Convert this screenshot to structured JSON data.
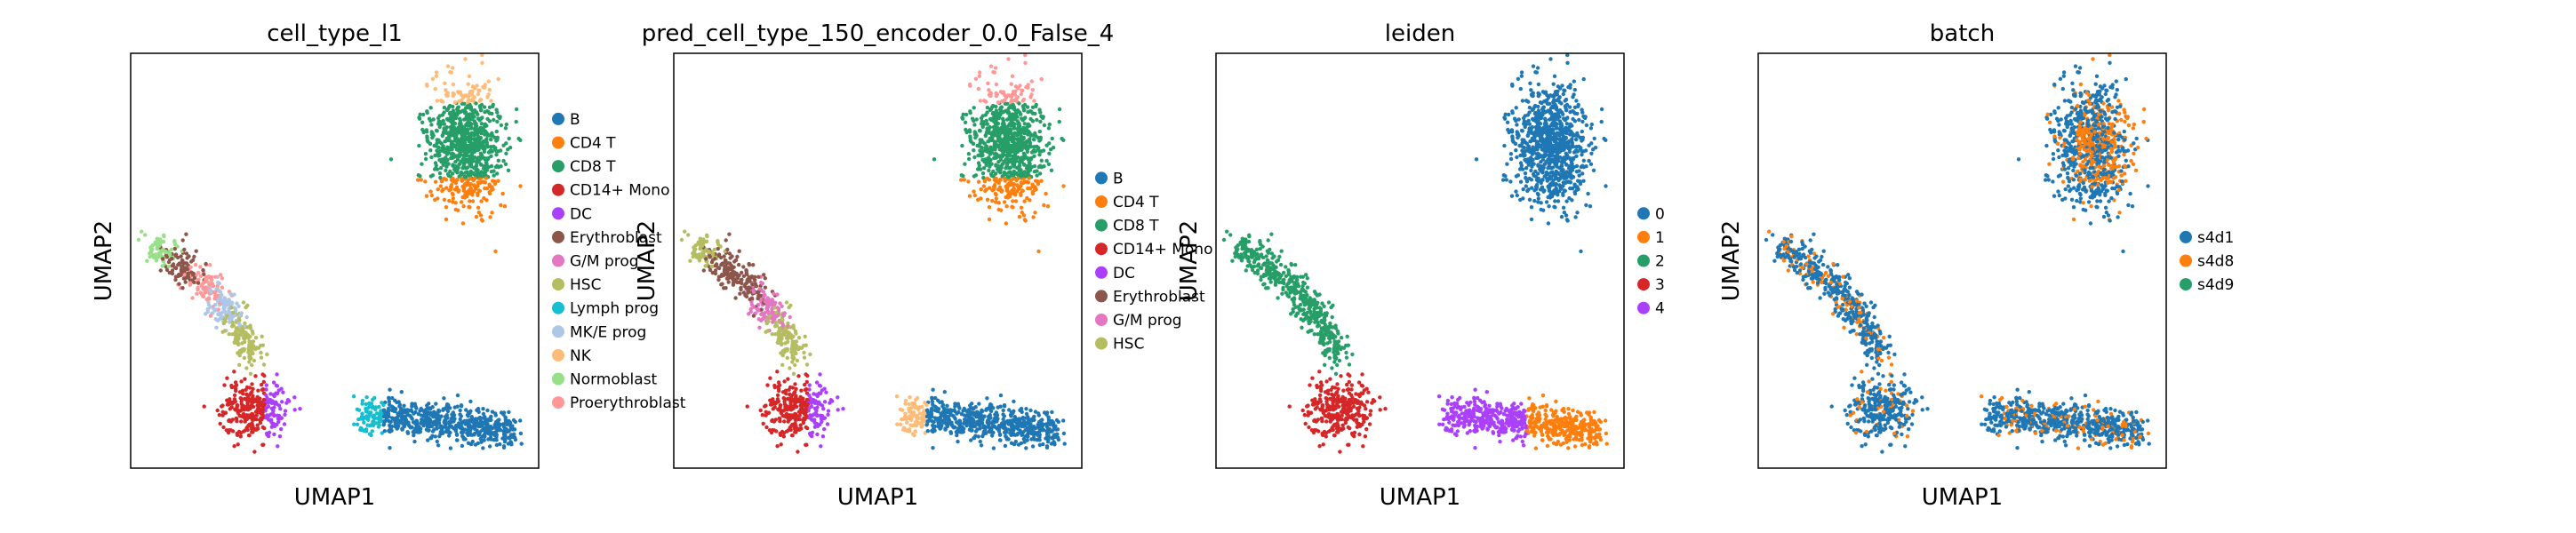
{
  "chart_data": [
    {
      "type": "scatter",
      "title": "cell_type_l1",
      "xlabel": "UMAP1",
      "ylabel": "UMAP2",
      "grid": false,
      "legend_placement": "right",
      "categories": [
        "B",
        "CD4 T",
        "CD8 T",
        "CD14+ Mono",
        "DC",
        "Erythroblast",
        "G/M prog",
        "HSC",
        "Lymph prog",
        "MK/E prog",
        "NK",
        "Normoblast",
        "Proerythroblast"
      ],
      "colors": [
        "#1f77b4",
        "#ff7f0e",
        "#279e68",
        "#d62728",
        "#aa40fc",
        "#8c564b",
        "#e377c2",
        "#b5bd61",
        "#17becf",
        "#aec7e8",
        "#ffbb78",
        "#98df8a",
        "#ff9896"
      ]
    },
    {
      "type": "scatter",
      "title": "pred_cell_type_150_encoder_0.0_False_4",
      "xlabel": "UMAP1",
      "ylabel": "UMAP2",
      "grid": false,
      "legend_placement": "right",
      "categories": [
        "B",
        "CD4 T",
        "CD8 T",
        "CD14+ Mono",
        "DC",
        "Erythroblast",
        "G/M prog",
        "HSC"
      ],
      "colors": [
        "#1f77b4",
        "#ff7f0e",
        "#279e68",
        "#d62728",
        "#aa40fc",
        "#8c564b",
        "#e377c2",
        "#b5bd61"
      ]
    },
    {
      "type": "scatter",
      "title": "leiden",
      "xlabel": "UMAP1",
      "ylabel": "UMAP2",
      "grid": false,
      "legend_placement": "right",
      "categories": [
        "0",
        "1",
        "2",
        "3",
        "4"
      ],
      "colors": [
        "#1f77b4",
        "#ff7f0e",
        "#279e68",
        "#d62728",
        "#aa40fc"
      ]
    },
    {
      "type": "scatter",
      "title": "batch",
      "xlabel": "UMAP1",
      "ylabel": "UMAP2",
      "grid": false,
      "legend_placement": "right",
      "categories": [
        "s4d1",
        "s4d8",
        "s4d9"
      ],
      "colors": [
        "#1f77b4",
        "#ff7f0e",
        "#279e68"
      ]
    }
  ]
}
